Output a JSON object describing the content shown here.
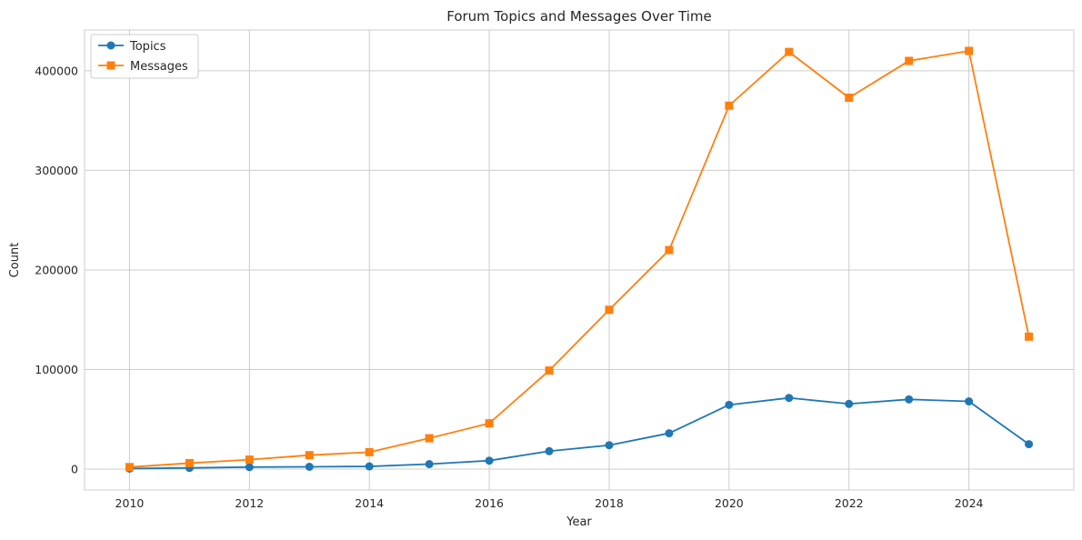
{
  "chart_data": {
    "type": "line",
    "title": "Forum Topics and Messages Over Time",
    "xlabel": "Year",
    "ylabel": "Count",
    "x": [
      2010,
      2011,
      2012,
      2013,
      2014,
      2015,
      2016,
      2017,
      2018,
      2019,
      2020,
      2021,
      2022,
      2023,
      2024,
      2025
    ],
    "xlim": [
      2009.25,
      2025.75
    ],
    "ylim": [
      -21000,
      441000
    ],
    "xticks": [
      2010,
      2012,
      2014,
      2016,
      2018,
      2020,
      2022,
      2024
    ],
    "yticks": [
      0,
      100000,
      200000,
      300000,
      400000
    ],
    "grid": true,
    "legend_position": "top-left",
    "series": [
      {
        "name": "Topics",
        "marker": "circle",
        "color": "#1f77b4",
        "values": [
          500,
          1200,
          2000,
          2300,
          2700,
          5000,
          8500,
          18000,
          24000,
          36000,
          64500,
          71500,
          65500,
          70000,
          68000,
          25000
        ]
      },
      {
        "name": "Messages",
        "marker": "square",
        "color": "#ff7f0e",
        "values": [
          2000,
          6000,
          9500,
          14000,
          17000,
          31000,
          46000,
          99000,
          160000,
          220000,
          365000,
          419000,
          373000,
          410000,
          420000,
          133000
        ]
      }
    ]
  }
}
